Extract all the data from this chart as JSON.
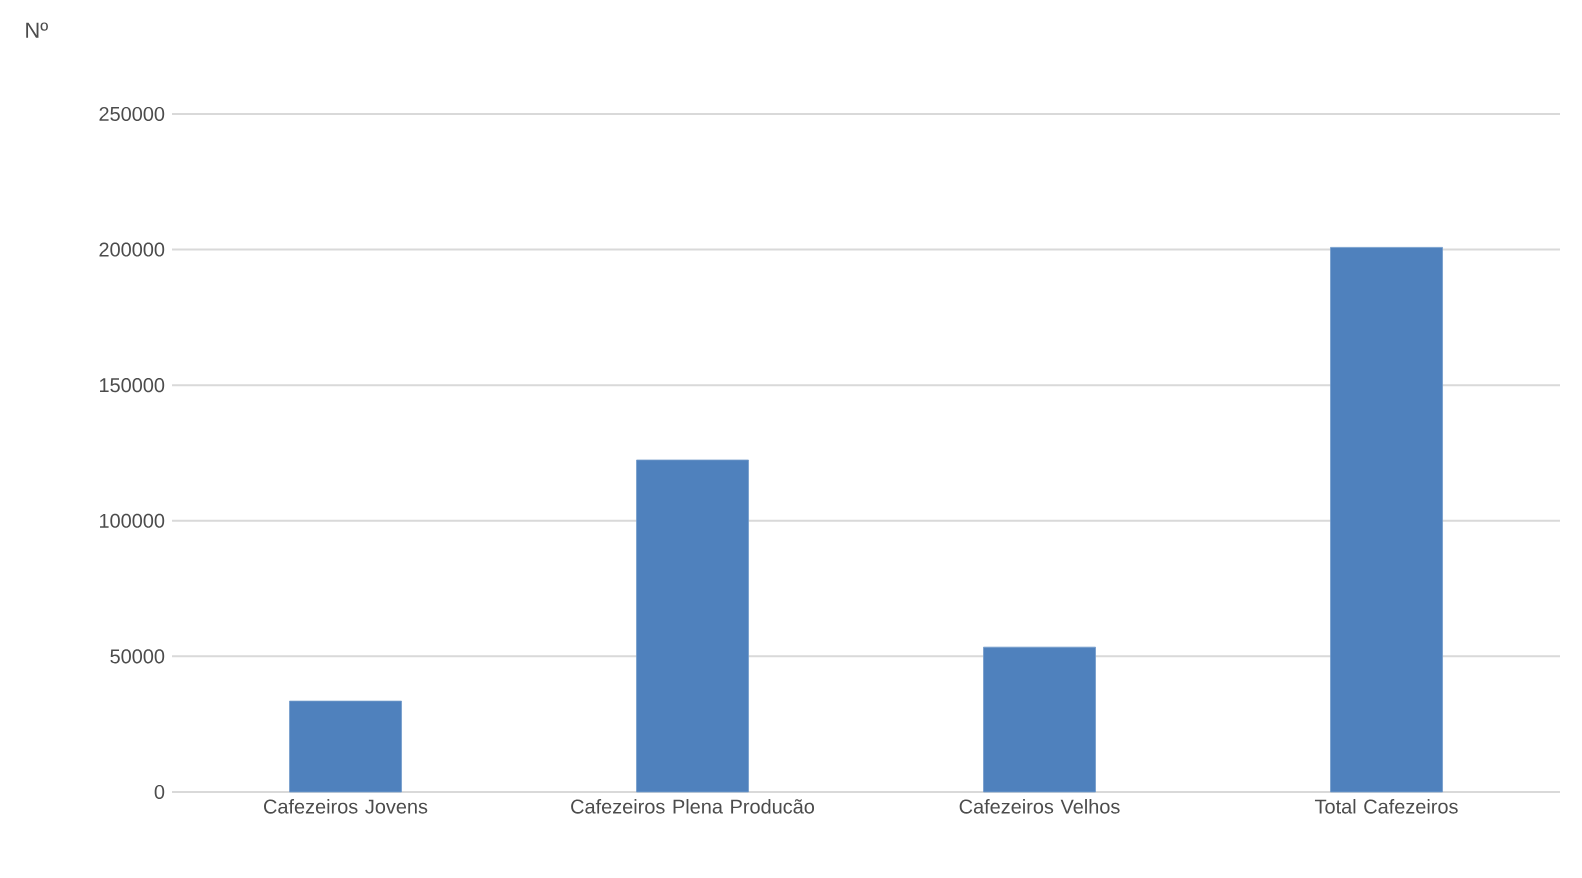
{
  "chart_data": {
    "type": "bar",
    "ylabel": "Nº",
    "categories": [
      "Cafezeiros Jovens",
      "Cafezeiros Plena Producão",
      "Cafezeiros Velhos",
      "Total Cafezeiros"
    ],
    "values": [
      33500,
      122400,
      53400,
      200800
    ],
    "color": "#4f81bd",
    "ylim": [
      0,
      250000
    ],
    "yticks": [
      0,
      50000,
      100000,
      150000,
      200000,
      250000
    ],
    "grid": "y"
  }
}
